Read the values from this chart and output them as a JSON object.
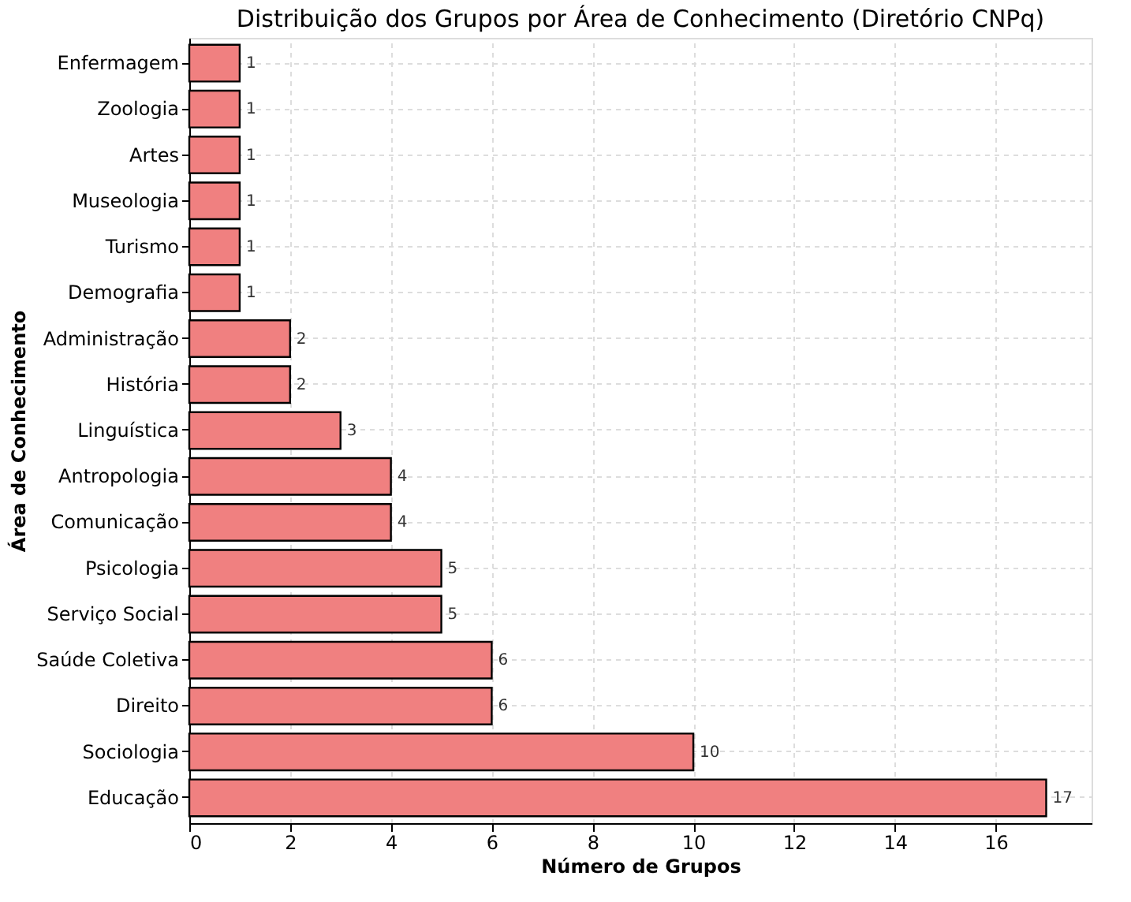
{
  "chart_data": {
    "type": "bar",
    "orientation": "horizontal",
    "title": "Distribuição dos Grupos por Área de Conhecimento (Diretório CNPq)",
    "xlabel": "Número de Grupos",
    "ylabel": "Área de Conhecimento",
    "categories": [
      "Enfermagem",
      "Zoologia",
      "Artes",
      "Museologia",
      "Turismo",
      "Demografia",
      "Administração",
      "História",
      "Linguística",
      "Antropologia",
      "Comunicação",
      "Psicologia",
      "Serviço Social",
      "Saúde Coletiva",
      "Direito",
      "Sociologia",
      "Educação"
    ],
    "values": [
      1,
      1,
      1,
      1,
      1,
      1,
      2,
      2,
      3,
      4,
      4,
      5,
      5,
      6,
      6,
      10,
      17
    ],
    "color": "#f08080",
    "xlim": [
      0,
      17.9
    ],
    "xticks": [
      0,
      2,
      4,
      6,
      8,
      10,
      12,
      14,
      16
    ],
    "grid": true,
    "data_labels": true
  }
}
